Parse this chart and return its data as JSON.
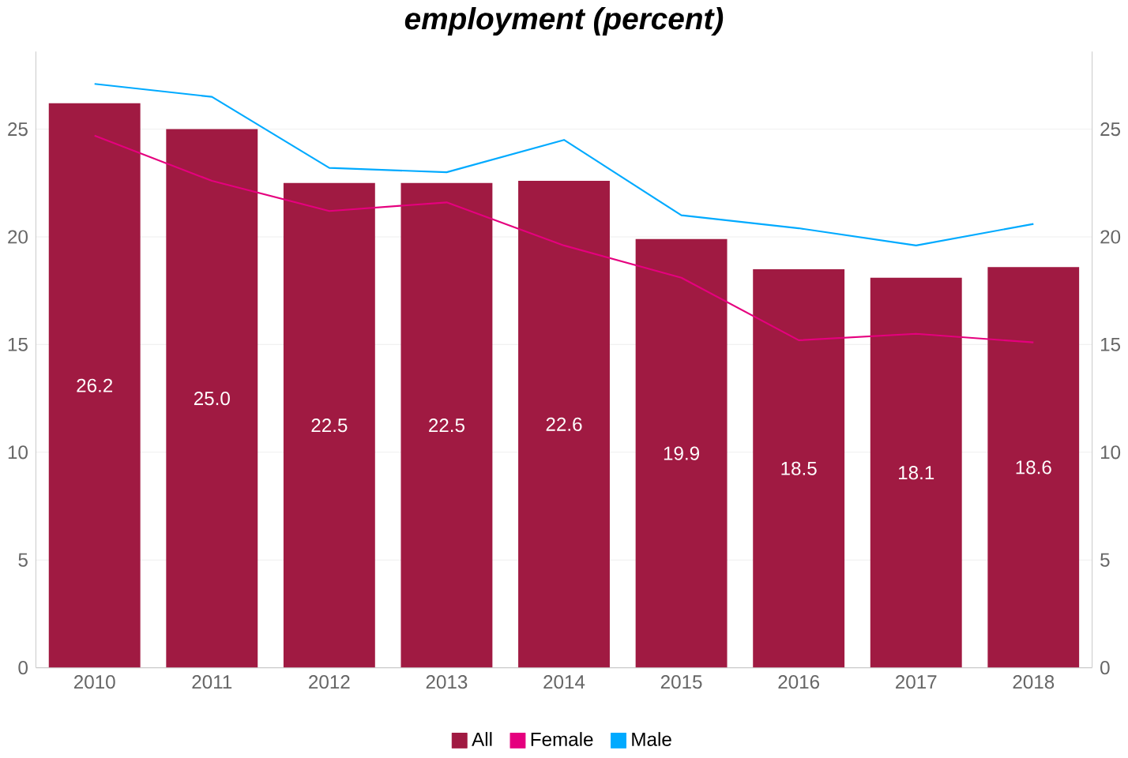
{
  "chart_data": {
    "type": "bar",
    "title": "employment (percent)",
    "categories": [
      "2010",
      "2011",
      "2012",
      "2013",
      "2014",
      "2015",
      "2016",
      "2017",
      "2018"
    ],
    "series": [
      {
        "name": "All",
        "color": "#a01a42",
        "values": [
          26.2,
          25.0,
          22.5,
          22.5,
          22.6,
          19.9,
          18.5,
          18.1,
          18.6
        ],
        "value_labels": [
          "26.2",
          "25.0",
          "22.5",
          "22.5",
          "22.6",
          "19.9",
          "18.5",
          "18.1",
          "18.6"
        ]
      },
      {
        "name": "Female",
        "type": "line",
        "axis": "y2",
        "color": "#e5007e",
        "values": [
          24.7,
          22.6,
          21.2,
          21.6,
          19.6,
          18.1,
          15.2,
          15.5,
          15.1
        ]
      },
      {
        "name": "Male",
        "type": "line",
        "axis": "y2",
        "color": "#00aaff",
        "values": [
          27.1,
          26.5,
          23.2,
          23.0,
          24.5,
          21.0,
          20.4,
          19.6,
          20.6
        ]
      }
    ],
    "ylim": [
      0,
      28.6
    ],
    "yticks": [
      0,
      5,
      10,
      15,
      20,
      25
    ],
    "y2lim": [
      0,
      28.6
    ],
    "y2ticks": [
      0,
      5,
      10,
      15,
      20,
      25
    ],
    "grid": "y",
    "legend": "bottom"
  }
}
